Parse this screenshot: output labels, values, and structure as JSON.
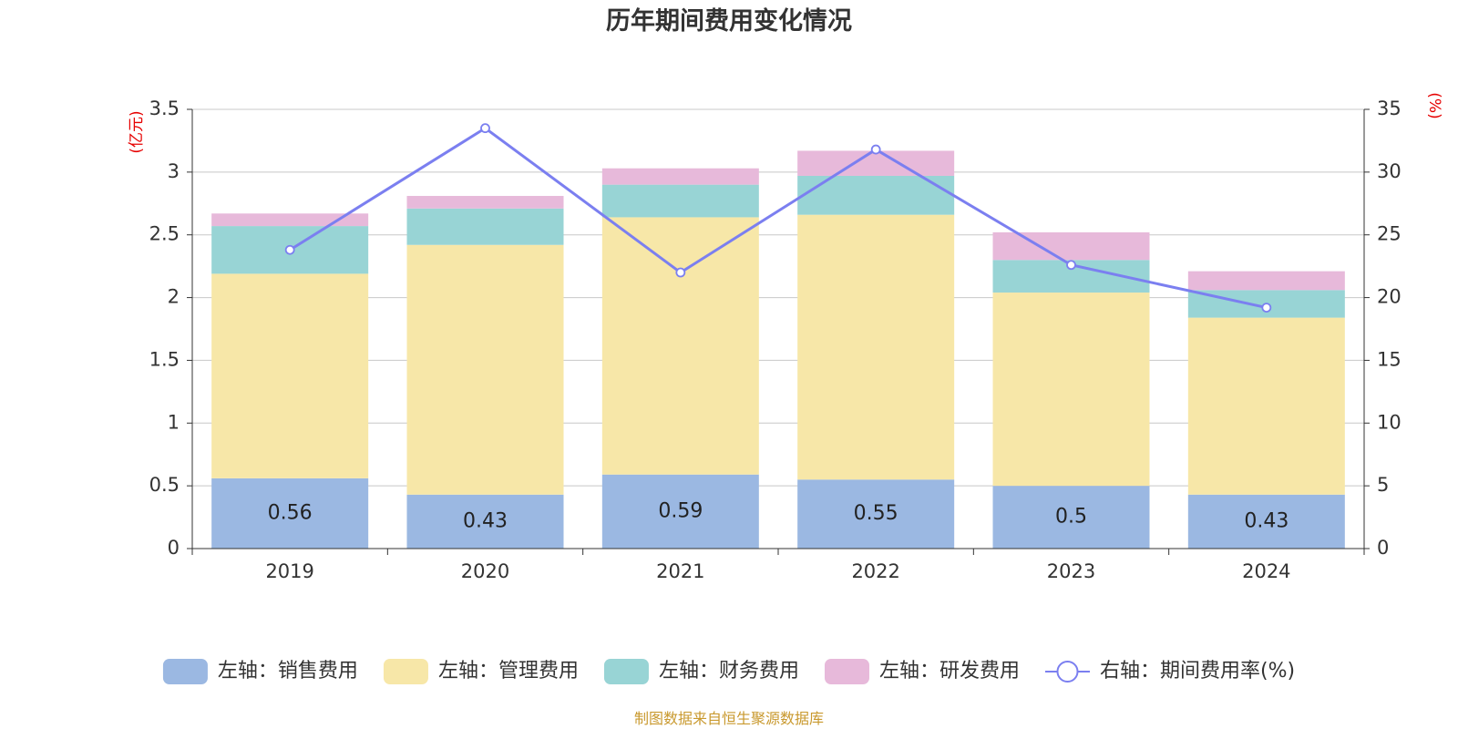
{
  "chart_data": {
    "type": "bar",
    "title": "历年期间费用变化情况",
    "categories": [
      "2019",
      "2020",
      "2021",
      "2022",
      "2023",
      "2024"
    ],
    "left_axis": {
      "unit": "(亿元)",
      "ylim": [
        0,
        3.5
      ],
      "ticks": [
        "0",
        "0.5",
        "1",
        "1.5",
        "2",
        "2.5",
        "3",
        "3.5"
      ]
    },
    "right_axis": {
      "unit": "(%)",
      "ylim": [
        0,
        35
      ],
      "ticks": [
        "0",
        "5",
        "10",
        "15",
        "20",
        "25",
        "30",
        "35"
      ]
    },
    "series": [
      {
        "name": "左轴：销售费用",
        "kind": "bar",
        "axis": "left",
        "color": "#9bb8e2",
        "values": [
          0.56,
          0.43,
          0.59,
          0.55,
          0.5,
          0.43
        ],
        "labels": [
          "0.56",
          "0.43",
          "0.59",
          "0.55",
          "0.5",
          "0.43"
        ]
      },
      {
        "name": "左轴：管理费用",
        "kind": "bar",
        "axis": "left",
        "color": "#f7e7a8",
        "values": [
          1.63,
          1.99,
          2.05,
          2.11,
          1.54,
          1.41
        ]
      },
      {
        "name": "左轴：财务费用",
        "kind": "bar",
        "axis": "left",
        "color": "#98d4d5",
        "values": [
          0.38,
          0.29,
          0.26,
          0.31,
          0.26,
          0.22
        ]
      },
      {
        "name": "左轴：研发费用",
        "kind": "bar",
        "axis": "left",
        "color": "#e7b9da",
        "values": [
          0.1,
          0.1,
          0.13,
          0.2,
          0.22,
          0.15
        ]
      },
      {
        "name": "右轴：期间费用率(%)",
        "kind": "line",
        "axis": "right",
        "color": "#7b7ff0",
        "values": [
          23.8,
          33.5,
          22.0,
          31.8,
          22.6,
          19.2
        ]
      }
    ],
    "grid": true,
    "legend": "bottom",
    "source": "制图数据来自恒生聚源数据库"
  }
}
